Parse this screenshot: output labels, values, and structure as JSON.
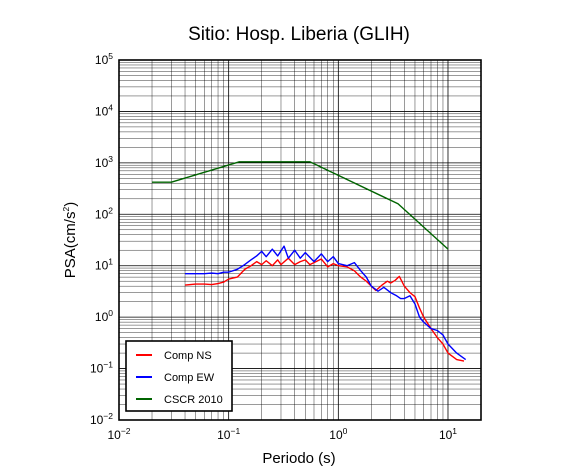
{
  "chart_data": {
    "type": "line",
    "title": "Sitio: Hosp. Liberia (GLIH)",
    "xlabel": "Periodo (s)",
    "ylabel_base": "PSA(cm/s",
    "ylabel_sup": "2",
    "ylabel_end": ")",
    "x_scale": "log",
    "y_scale": "log",
    "xlim": [
      0.01,
      20
    ],
    "ylim": [
      0.01,
      100000
    ],
    "grid": true,
    "legend_position": "bottom-left",
    "x_ticks": [
      {
        "base": "10",
        "exp": "−2",
        "value": 0.01
      },
      {
        "base": "10",
        "exp": "−1",
        "value": 0.1
      },
      {
        "base": "10",
        "exp": "0",
        "value": 1
      },
      {
        "base": "10",
        "exp": "1",
        "value": 10
      }
    ],
    "y_ticks": [
      {
        "base": "10",
        "exp": "−2",
        "value": 0.01
      },
      {
        "base": "10",
        "exp": "−1",
        "value": 0.1
      },
      {
        "base": "10",
        "exp": "0",
        "value": 1
      },
      {
        "base": "10",
        "exp": "1",
        "value": 10
      },
      {
        "base": "10",
        "exp": "2",
        "value": 100
      },
      {
        "base": "10",
        "exp": "3",
        "value": 1000
      },
      {
        "base": "10",
        "exp": "4",
        "value": 10000
      },
      {
        "base": "10",
        "exp": "5",
        "value": 100000
      }
    ],
    "series": [
      {
        "name": "Comp NS",
        "color": "#ff0000",
        "points": [
          [
            0.04,
            4.2
          ],
          [
            0.05,
            4.4
          ],
          [
            0.06,
            4.4
          ],
          [
            0.07,
            4.3
          ],
          [
            0.08,
            4.5
          ],
          [
            0.09,
            4.8
          ],
          [
            0.1,
            5.5
          ],
          [
            0.12,
            6.0
          ],
          [
            0.14,
            8.5
          ],
          [
            0.16,
            10.0
          ],
          [
            0.18,
            12.0
          ],
          [
            0.2,
            10.5
          ],
          [
            0.22,
            12.5
          ],
          [
            0.25,
            10.0
          ],
          [
            0.28,
            13.0
          ],
          [
            0.3,
            10.5
          ],
          [
            0.35,
            14.0
          ],
          [
            0.4,
            10.5
          ],
          [
            0.45,
            12.0
          ],
          [
            0.5,
            13.0
          ],
          [
            0.55,
            10.5
          ],
          [
            0.6,
            11.5
          ],
          [
            0.7,
            13.5
          ],
          [
            0.8,
            9.5
          ],
          [
            0.9,
            11.0
          ],
          [
            1.0,
            10.0
          ],
          [
            1.2,
            9.5
          ],
          [
            1.4,
            8.0
          ],
          [
            1.6,
            6.0
          ],
          [
            1.8,
            5.0
          ],
          [
            2.0,
            4.0
          ],
          [
            2.2,
            3.3
          ],
          [
            2.5,
            4.2
          ],
          [
            2.8,
            5.0
          ],
          [
            3.0,
            4.6
          ],
          [
            3.3,
            5.2
          ],
          [
            3.6,
            6.2
          ],
          [
            4.0,
            4.0
          ],
          [
            4.5,
            3.0
          ],
          [
            5.0,
            2.5
          ],
          [
            5.5,
            1.5
          ],
          [
            6.0,
            1.0
          ],
          [
            7.0,
            0.6
          ],
          [
            8.0,
            0.4
          ],
          [
            9.0,
            0.3
          ],
          [
            10.0,
            0.2
          ],
          [
            12.0,
            0.15
          ],
          [
            14.0,
            0.14
          ]
        ]
      },
      {
        "name": "Comp EW",
        "color": "#0000ff",
        "points": [
          [
            0.04,
            7.0
          ],
          [
            0.05,
            7.0
          ],
          [
            0.06,
            7.0
          ],
          [
            0.07,
            7.2
          ],
          [
            0.08,
            7.0
          ],
          [
            0.09,
            7.5
          ],
          [
            0.1,
            7.5
          ],
          [
            0.12,
            8.5
          ],
          [
            0.14,
            10.5
          ],
          [
            0.16,
            13.0
          ],
          [
            0.18,
            15.5
          ],
          [
            0.2,
            19.0
          ],
          [
            0.22,
            15.0
          ],
          [
            0.25,
            21.0
          ],
          [
            0.28,
            15.5
          ],
          [
            0.32,
            24.0
          ],
          [
            0.35,
            14.0
          ],
          [
            0.4,
            20.0
          ],
          [
            0.45,
            14.0
          ],
          [
            0.5,
            18.0
          ],
          [
            0.6,
            12.0
          ],
          [
            0.7,
            17.0
          ],
          [
            0.8,
            12.0
          ],
          [
            0.9,
            15.0
          ],
          [
            1.0,
            11.0
          ],
          [
            1.2,
            10.0
          ],
          [
            1.4,
            11.5
          ],
          [
            1.6,
            8.0
          ],
          [
            1.8,
            6.0
          ],
          [
            2.0,
            4.0
          ],
          [
            2.3,
            3.2
          ],
          [
            2.6,
            3.8
          ],
          [
            3.0,
            3.0
          ],
          [
            3.4,
            2.6
          ],
          [
            3.7,
            2.3
          ],
          [
            4.0,
            2.3
          ],
          [
            4.5,
            2.6
          ],
          [
            5.0,
            1.8
          ],
          [
            5.5,
            1.0
          ],
          [
            6.0,
            0.8
          ],
          [
            7.0,
            0.6
          ],
          [
            8.0,
            0.55
          ],
          [
            9.0,
            0.45
          ],
          [
            10.0,
            0.3
          ],
          [
            12.0,
            0.2
          ],
          [
            14.5,
            0.15
          ]
        ]
      },
      {
        "name": "CSCR 2010",
        "color": "#006400",
        "points": [
          [
            0.02,
            420
          ],
          [
            0.03,
            420
          ],
          [
            0.125,
            1050
          ],
          [
            0.55,
            1050
          ],
          [
            3.5,
            160
          ],
          [
            10.0,
            21
          ]
        ]
      }
    ]
  }
}
